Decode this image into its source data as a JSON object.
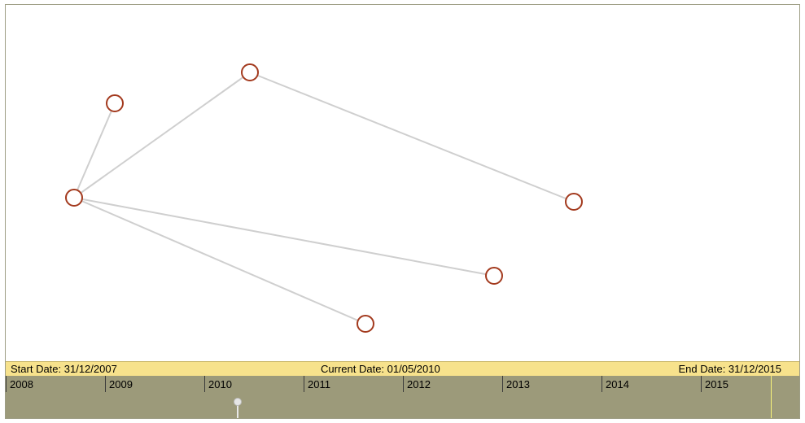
{
  "dates": {
    "start": "Start Date: 31/12/2007",
    "current": "Current Date: 01/05/2010",
    "end": "End Date: 31/12/2015"
  },
  "timeline": {
    "years": [
      "2008",
      "2009",
      "2010",
      "2011",
      "2012",
      "2013",
      "2014",
      "2015"
    ]
  },
  "colors": {
    "node_stroke": "#a33a1e",
    "edge": "#cfcfcf",
    "date_bar": "#f7e28c",
    "timeline_bg": "#9c9a7a",
    "end_marker": "#f7f37a"
  }
}
